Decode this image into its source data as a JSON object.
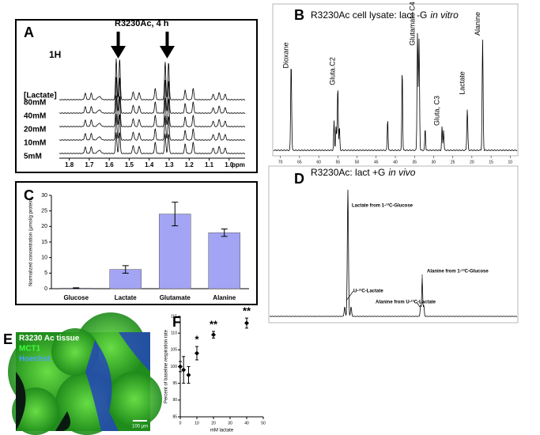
{
  "panel_a": {
    "letter": "A",
    "title": "R3230Ac, 4 h",
    "nucleus": "1H",
    "legend_title": "[Lactate]",
    "rows": [
      "80mM",
      "40mM",
      "20mM",
      "10mM",
      "5mM"
    ],
    "xticks": [
      {
        "value": 1.8,
        "label": "1.8"
      },
      {
        "value": 1.7,
        "label": "1.7"
      },
      {
        "value": 1.6,
        "label": "1.6"
      },
      {
        "value": 1.5,
        "label": "1.5"
      },
      {
        "value": 1.4,
        "label": "1.4"
      },
      {
        "value": 1.3,
        "label": "1.3"
      },
      {
        "value": 1.2,
        "label": "1.2"
      },
      {
        "value": 1.1,
        "label": "1.1"
      },
      {
        "value": 1.0,
        "label": "1.0"
      }
    ],
    "xlim": [
      1.85,
      0.92
    ],
    "x_unit": "ppm"
  },
  "panel_b": {
    "letter": "B",
    "title": "R3230Ac cell lysate: lact -G",
    "title_italic": "in vitro",
    "peaks": [
      "Dioxane",
      "Gluta.C2",
      "Glutamate C4",
      "Gluta, C3",
      "Lactate",
      "Alanine"
    ],
    "xticks": [
      70,
      65,
      60,
      55,
      50,
      45,
      40,
      35,
      30,
      25,
      20,
      15,
      10
    ],
    "xlim": [
      72,
      8
    ]
  },
  "panel_d": {
    "letter": "D",
    "title": "R3230Ac: lact +G",
    "title_italic": "in vivo",
    "peaks": [
      "Lactate from 1-¹³C-Glucose",
      "U-¹³C-Lactate",
      "Alanine from 1-¹³C-Glucose",
      "Alanine from U-¹³C-Lactate"
    ]
  },
  "panel_e": {
    "letter": "E",
    "labels": [
      "R3230 Ac tissue",
      "MCT1",
      "Hoechst"
    ],
    "scale_bar": "100 µm"
  },
  "chart_data": [
    {
      "type": "bar",
      "letter": "C",
      "y_label": "Normalized concentration (µmol/g protein)",
      "categories": [
        "Glucose",
        "Lactate",
        "Glutamate",
        "Alanine"
      ],
      "values": [
        0.2,
        6.2,
        24,
        18
      ],
      "errors": [
        0.1,
        1.2,
        3.8,
        1.2
      ],
      "color": "#a4a4f4",
      "ylim": [
        0,
        30
      ],
      "yticks": [
        0,
        5,
        10,
        15,
        20,
        25,
        30
      ]
    },
    {
      "type": "scatter",
      "letter": "F",
      "x_label": "mM lactate",
      "y_label": "Percent of baseline respiration rate",
      "x": [
        0,
        2,
        5,
        10,
        20,
        40
      ],
      "values": [
        100,
        99,
        97.5,
        104,
        109.5,
        113
      ],
      "errors": [
        1.5,
        4,
        2.5,
        2,
        1,
        1.5
      ],
      "annotations": [
        null,
        null,
        null,
        "*",
        "**",
        "**"
      ],
      "color": "#000000",
      "xlim": [
        0,
        50
      ],
      "xticks": [
        0,
        10,
        20,
        30,
        40,
        50
      ],
      "ylim": [
        85,
        115
      ],
      "yticks": [
        85,
        90,
        95,
        100,
        105,
        110,
        115
      ]
    }
  ]
}
